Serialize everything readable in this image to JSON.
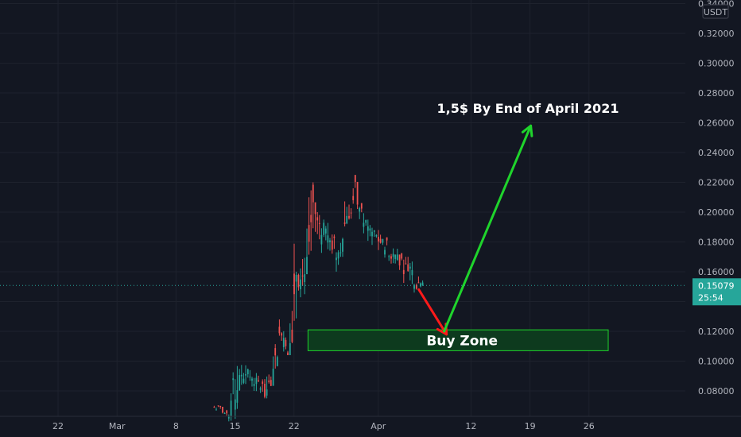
{
  "chart_data": {
    "type": "candlestick",
    "title": "",
    "currency": "USDT",
    "x_ticks": [
      "22",
      "Mar",
      "8",
      "15",
      "22",
      "Apr",
      "12",
      "19",
      "26"
    ],
    "y_ticks": [
      "0.08000",
      "0.10000",
      "0.12000",
      "0.14000",
      "0.16000",
      "0.18000",
      "0.20000",
      "0.22000",
      "0.24000",
      "0.26000",
      "0.28000",
      "0.30000",
      "0.32000",
      "0.34000"
    ],
    "ylim": [
      0.062,
      0.34
    ],
    "last_price": {
      "value": 0.15079,
      "label": "0.15079",
      "countdown": "25:54"
    },
    "price_series": {
      "x": [
        "Mar 13",
        "Mar 14",
        "Mar 15",
        "Mar 16",
        "Mar 17",
        "Mar 18",
        "Mar 19",
        "Mar 20",
        "Mar 21",
        "Mar 22",
        "Mar 23",
        "Mar 24",
        "Mar 25",
        "Mar 26",
        "Mar 27",
        "Mar 28",
        "Mar 29",
        "Mar 30",
        "Mar 31",
        "Apr 1",
        "Apr 2",
        "Apr 3",
        "Apr 4",
        "Apr 5",
        "Apr 6"
      ],
      "close": [
        0.068,
        0.06,
        0.085,
        0.098,
        0.088,
        0.083,
        0.079,
        0.118,
        0.113,
        0.169,
        0.16,
        0.205,
        0.18,
        0.188,
        0.172,
        0.2,
        0.218,
        0.195,
        0.186,
        0.18,
        0.175,
        0.172,
        0.162,
        0.158,
        0.154
      ],
      "high": [
        0.07,
        0.068,
        0.11,
        0.105,
        0.095,
        0.092,
        0.1,
        0.128,
        0.14,
        0.192,
        0.175,
        0.22,
        0.2,
        0.195,
        0.185,
        0.215,
        0.225,
        0.205,
        0.195,
        0.188,
        0.182,
        0.178,
        0.17,
        0.17,
        0.16
      ],
      "low": [
        0.062,
        0.058,
        0.06,
        0.08,
        0.08,
        0.076,
        0.075,
        0.095,
        0.104,
        0.112,
        0.14,
        0.16,
        0.165,
        0.17,
        0.16,
        0.17,
        0.195,
        0.185,
        0.175,
        0.17,
        0.165,
        0.16,
        0.15,
        0.146,
        0.148
      ]
    },
    "annotations": {
      "target_text": "1,5$ By End of April 2021",
      "zone_text": "Buy Zone",
      "buy_zone": {
        "y_low": 0.107,
        "y_high": 0.121,
        "x_start": "Mar 23",
        "x_end": "Apr 28"
      },
      "down_arrow": {
        "from": [
          "Apr 6",
          0.148
        ],
        "to": [
          "Apr 9",
          0.118
        ]
      },
      "up_arrow": {
        "from": [
          "Apr 9",
          0.12
        ],
        "to": [
          "Apr 19",
          0.258
        ]
      }
    },
    "colors": {
      "background": "#131722",
      "up": "#26a69a",
      "down": "#ef5350",
      "grid": "#1e222d",
      "axis_text": "#b2b5be",
      "price_line": "#26a69a",
      "zone_border": "#1fd42c",
      "zone_fill": "#0d3a1e",
      "up_arrow": "#1fd42c",
      "down_arrow": "#ff1a1a"
    }
  }
}
